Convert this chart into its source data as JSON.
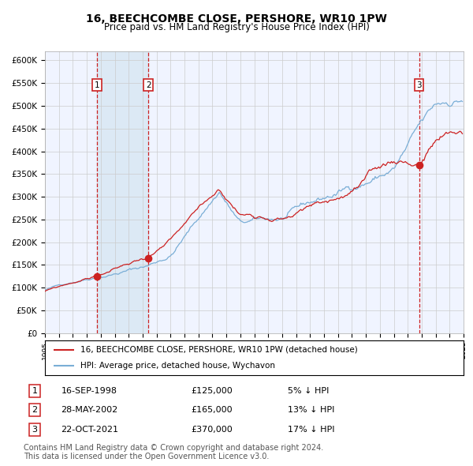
{
  "title": "16, BEECHCOMBE CLOSE, PERSHORE, WR10 1PW",
  "subtitle": "Price paid vs. HM Land Registry's House Price Index (HPI)",
  "legend_line1": "16, BEECHCOMBE CLOSE, PERSHORE, WR10 1PW (detached house)",
  "legend_line2": "HPI: Average price, detached house, Wychavon",
  "transactions": [
    {
      "label": "1",
      "date": "16-SEP-1998",
      "price": 125000,
      "pct": "5% ↓ HPI"
    },
    {
      "label": "2",
      "date": "28-MAY-2002",
      "price": 165000,
      "pct": "13% ↓ HPI"
    },
    {
      "label": "3",
      "date": "22-OCT-2021",
      "price": 370000,
      "pct": "17% ↓ HPI"
    }
  ],
  "transaction_dates_num": [
    1998.71,
    2002.41,
    2021.81
  ],
  "transaction_prices": [
    125000,
    165000,
    370000
  ],
  "year_start": 1995,
  "year_end": 2025,
  "ylim": [
    0,
    620000
  ],
  "yticks": [
    0,
    50000,
    100000,
    150000,
    200000,
    250000,
    300000,
    350000,
    400000,
    450000,
    500000,
    550000,
    600000
  ],
  "ytick_labels": [
    "£0",
    "£50K",
    "£100K",
    "£150K",
    "£200K",
    "£250K",
    "£300K",
    "£350K",
    "£400K",
    "£450K",
    "£500K",
    "£550K",
    "£600K"
  ],
  "hpi_color": "#7aaed6",
  "price_color": "#cc2222",
  "shade_color": "#dce9f5",
  "vline_color": "#cc2222",
  "grid_color": "#cccccc",
  "background_color": "#f0f4ff",
  "footer": "Contains HM Land Registry data © Crown copyright and database right 2024.\nThis data is licensed under the Open Government Licence v3.0.",
  "footer_fontsize": 7.0
}
